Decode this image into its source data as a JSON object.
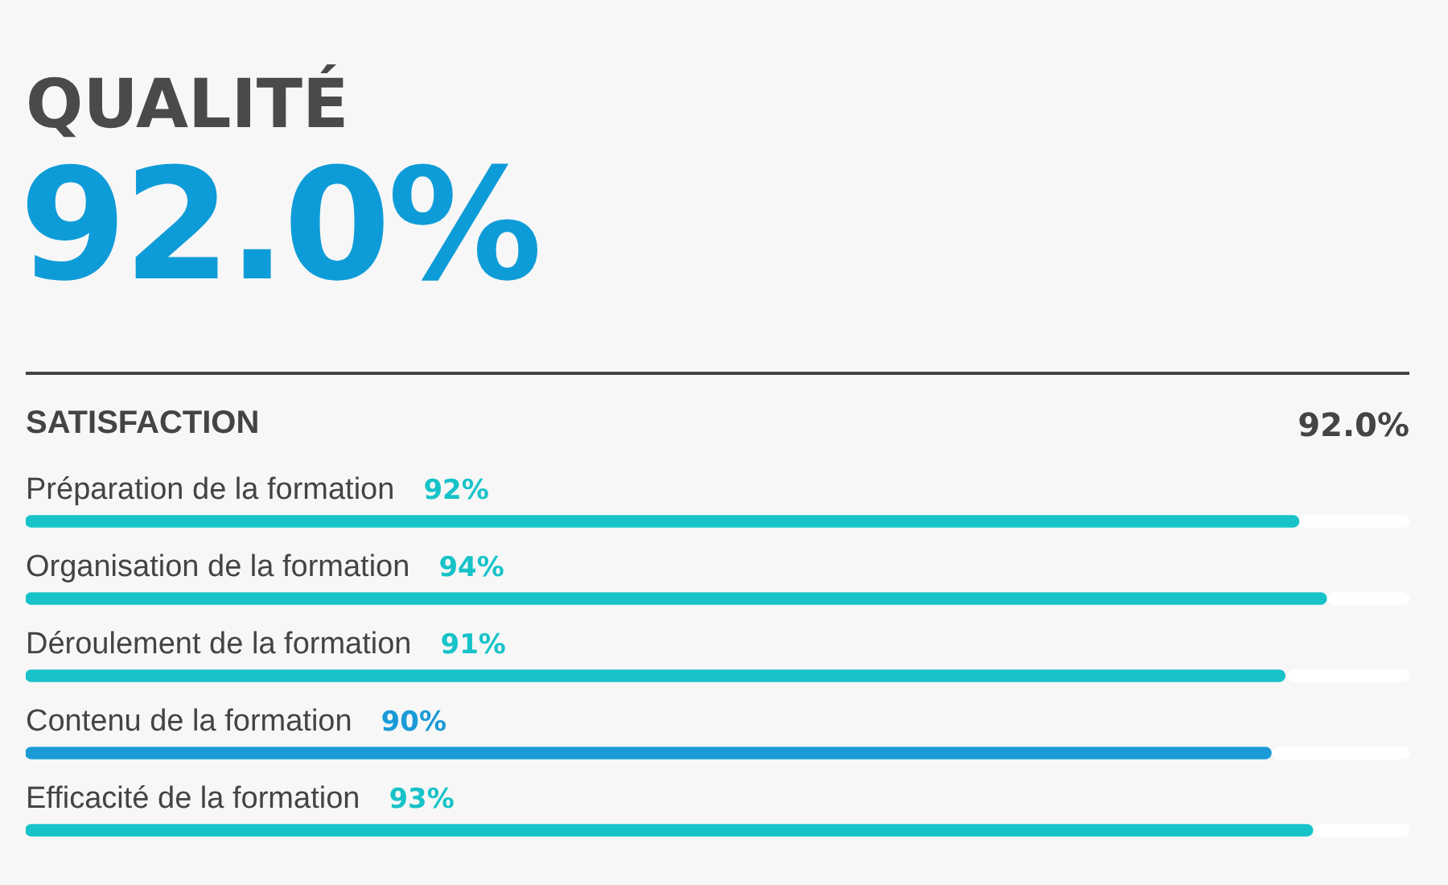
{
  "chart_data": {
    "type": "bar",
    "orientation": "horizontal",
    "title": "QUALITÉ",
    "subtitle": "92.0%",
    "annotations": [
      "SATISFACTION",
      "92.0%"
    ],
    "categories": [
      "Préparation de la formation",
      "Organisation de la formation",
      "Déroulement de la formation",
      "Contenu de la formation",
      "Efficacité de la formation"
    ],
    "values": [
      92,
      94,
      91,
      90,
      93
    ],
    "colors": [
      "#17c3c8",
      "#17c3c8",
      "#17c3c8",
      "#1a9bd7",
      "#17c3c8"
    ],
    "value_labels": [
      "92%",
      "94%",
      "91%",
      "90%",
      "93%"
    ],
    "xlim": [
      0,
      100
    ],
    "tick_labels": "y",
    "legend": false
  }
}
